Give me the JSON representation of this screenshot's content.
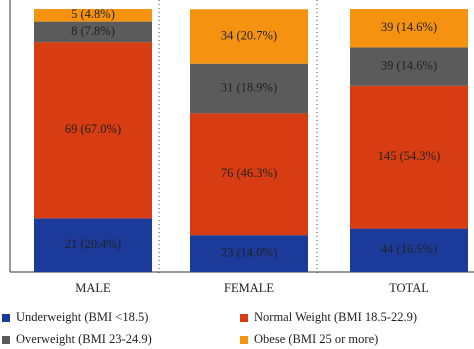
{
  "chart_data": {
    "type": "stacked-bar",
    "categories": [
      "MALE",
      "FEMALE",
      "TOTAL"
    ],
    "ylim": [
      0,
      100
    ],
    "legend": "bottom",
    "series": [
      {
        "name": "Underweight (BMI <18.5)",
        "color": "#1b3a9a",
        "values": [
          20.4,
          14.0,
          16.5
        ],
        "value_labels": [
          "21 (20.4%)",
          "23 (14.0%)",
          "44 (16.5%)"
        ]
      },
      {
        "name": "Normal Weight (BMI 18.5-22.9)",
        "color": "#d83c12",
        "values": [
          67.0,
          46.3,
          54.3
        ],
        "value_labels": [
          "69 (67.0%)",
          "76 (46.3%)",
          "145 (54.3%)"
        ]
      },
      {
        "name": "Overweight (BMI 23-24.9)",
        "color": "#5b5b5b",
        "values": [
          7.8,
          18.9,
          14.6
        ],
        "value_labels": [
          "8 (7.8%)",
          "31 (18.9%)",
          "39 (14.6%)"
        ]
      },
      {
        "name": "Obese (BMI 25 or more)",
        "color": "#f5920f",
        "values": [
          4.8,
          20.7,
          14.6
        ],
        "value_labels": [
          "5 (4.8%)",
          "34 (20.7%)",
          "39 (14.6%)"
        ]
      }
    ]
  }
}
